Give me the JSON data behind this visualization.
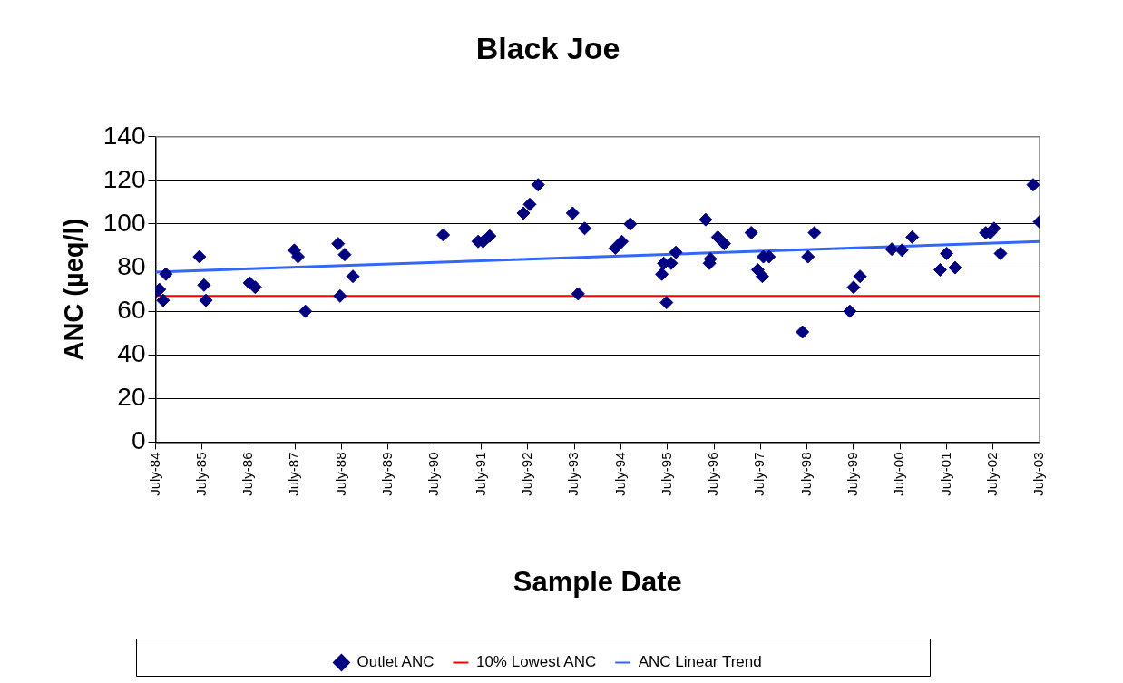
{
  "chart_data": {
    "type": "scatter",
    "title": "Black Joe",
    "xlabel": "Sample Date",
    "ylabel": "ANC (µeq/l)",
    "x": [
      "1984-07-02",
      "1984-07-31",
      "1984-08-29",
      "1984-09-20",
      "1985-06-10",
      "1985-07-16",
      "1985-07-31",
      "1986-07-09",
      "1986-08-22",
      "1987-06-25",
      "1987-07-24",
      "1987-09-20",
      "1988-06-03",
      "1988-06-18",
      "1988-07-24",
      "1988-09-27",
      "1990-09-06",
      "1991-06-07",
      "1991-07-16",
      "1991-09-06",
      "1992-05-27",
      "1992-07-16",
      "1992-09-20",
      "1993-06-18",
      "1993-07-31",
      "1993-09-20",
      "1994-05-19",
      "1994-07-09",
      "1994-09-13",
      "1995-05-19",
      "1995-06-03",
      "1995-06-25",
      "1995-07-31",
      "1995-09-06",
      "1996-04-27",
      "1996-05-27",
      "1996-06-03",
      "1996-07-31",
      "1996-09-20",
      "1997-04-20",
      "1997-06-10",
      "1997-07-16",
      "1997-07-24",
      "1997-09-06",
      "1998-05-27",
      "1998-07-09",
      "1998-08-29",
      "1999-06-03",
      "1999-07-02",
      "1999-08-22",
      "2000-04-27",
      "2000-07-16",
      "2000-10-05",
      "2001-05-12",
      "2001-07-02",
      "2001-09-06",
      "2002-05-05",
      "2002-06-10",
      "2002-07-09",
      "2002-08-29",
      "2003-05-12",
      "2003-07-01"
    ],
    "series": [
      {
        "name": "Outlet ANC",
        "color": "#000080",
        "marker": "diamond",
        "values": [
          69,
          70,
          65,
          77,
          85,
          72,
          65,
          73,
          71,
          88,
          85,
          60,
          91,
          67,
          86,
          76,
          95,
          92,
          92,
          94.5,
          105,
          109,
          118,
          105,
          68,
          98,
          89,
          92,
          100,
          77,
          82,
          64,
          82,
          87,
          102,
          82,
          84,
          94,
          91,
          96,
          79,
          76,
          85,
          85,
          50.5,
          85,
          96,
          60,
          71,
          76,
          88.5,
          88,
          94,
          79,
          86.5,
          80,
          96,
          96,
          98,
          86.5,
          118,
          101
        ]
      },
      {
        "name": "10% Lowest ANC",
        "type": "line",
        "color": "#ff0000",
        "x": [
          "1984-07-01",
          "2003-07-01"
        ],
        "values": [
          67,
          67
        ],
        "marker": "none",
        "line_style": "solid"
      },
      {
        "name": "ANC Linear Trend",
        "type": "line",
        "color": "#3366ff",
        "x": [
          "1984-07-01",
          "2003-07-01"
        ],
        "values": [
          78,
          92
        ],
        "marker": "none",
        "line_style": "solid"
      }
    ],
    "xlim": [
      "1984-07-01",
      "2003-07-01"
    ],
    "xticks": [
      {
        "value": "1984-07-01",
        "label": "July-84"
      },
      {
        "value": "1985-07-01",
        "label": "July-85"
      },
      {
        "value": "1986-07-01",
        "label": "July-86"
      },
      {
        "value": "1987-07-01",
        "label": "July-87"
      },
      {
        "value": "1988-07-01",
        "label": "July-88"
      },
      {
        "value": "1989-07-01",
        "label": "July-89"
      },
      {
        "value": "1990-07-01",
        "label": "July-90"
      },
      {
        "value": "1991-07-01",
        "label": "July-91"
      },
      {
        "value": "1992-07-01",
        "label": "July-92"
      },
      {
        "value": "1993-07-01",
        "label": "July-93"
      },
      {
        "value": "1994-07-01",
        "label": "July-94"
      },
      {
        "value": "1995-07-01",
        "label": "July-95"
      },
      {
        "value": "1996-07-01",
        "label": "July-96"
      },
      {
        "value": "1997-07-01",
        "label": "July-97"
      },
      {
        "value": "1998-07-01",
        "label": "July-98"
      },
      {
        "value": "1999-07-01",
        "label": "July-99"
      },
      {
        "value": "2000-07-01",
        "label": "July-00"
      },
      {
        "value": "2001-07-01",
        "label": "July-01"
      },
      {
        "value": "2002-07-01",
        "label": "July-02"
      },
      {
        "value": "2003-07-01",
        "label": "July-03"
      }
    ],
    "ylim": [
      0,
      140
    ],
    "yticks": [
      0,
      20,
      40,
      60,
      80,
      100,
      120,
      140
    ],
    "grid": "y",
    "legend": "bottom"
  }
}
